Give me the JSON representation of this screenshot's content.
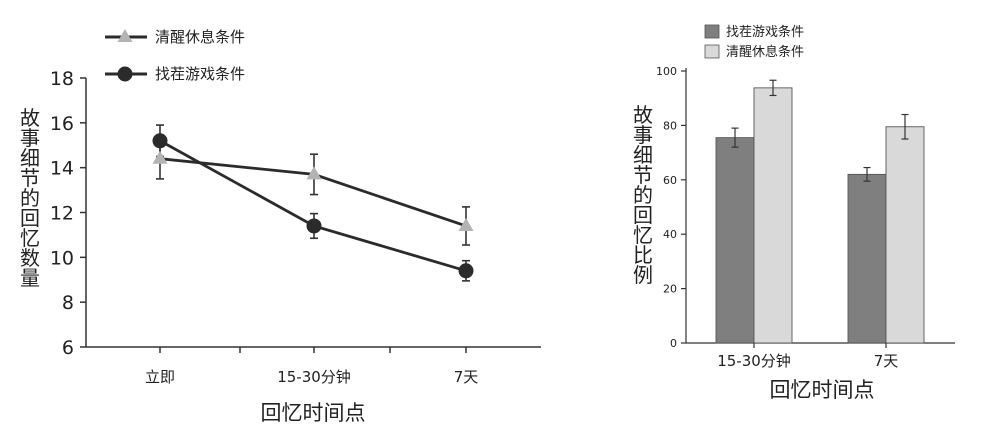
{
  "chart_data": [
    {
      "type": "line",
      "title": "",
      "xlabel": "回忆时间点",
      "ylabel": "故事细节的回忆数量",
      "ylim": [
        6,
        18
      ],
      "yticks": [
        "6",
        "8",
        "10",
        "12",
        "14",
        "16",
        "18"
      ],
      "categories": [
        "立即",
        "15-30分钟",
        "7天"
      ],
      "grid": false,
      "legend_position": "top-left",
      "series": [
        {
          "name": "清醒休息条件",
          "marker": "triangle",
          "color": "#b3b3b3",
          "values": [
            14.4,
            13.7,
            11.4
          ],
          "error": [
            0.9,
            0.9,
            0.85
          ]
        },
        {
          "name": "找茬游戏条件",
          "marker": "circle",
          "color": "#2b2b2b",
          "values": [
            15.2,
            11.4,
            9.4
          ],
          "error": [
            0.7,
            0.55,
            0.45
          ]
        }
      ]
    },
    {
      "type": "bar",
      "title": "",
      "xlabel": "回忆时间点",
      "ylabel": "故事细节的回忆比例",
      "ylim": [
        0,
        100
      ],
      "yticks": [
        "0",
        "20",
        "40",
        "60",
        "80",
        "100"
      ],
      "categories": [
        "15-30分钟",
        "7天"
      ],
      "grid": false,
      "legend_position": "top",
      "series": [
        {
          "name": "找茬游戏条件",
          "color": "#7f7f7f",
          "values": [
            75.5,
            62
          ],
          "error": [
            3.5,
            2.5
          ]
        },
        {
          "name": "清醒休息条件",
          "color": "#d9d9d9",
          "values": [
            93.8,
            79.5
          ],
          "error": [
            2.8,
            4.5
          ]
        }
      ]
    }
  ]
}
